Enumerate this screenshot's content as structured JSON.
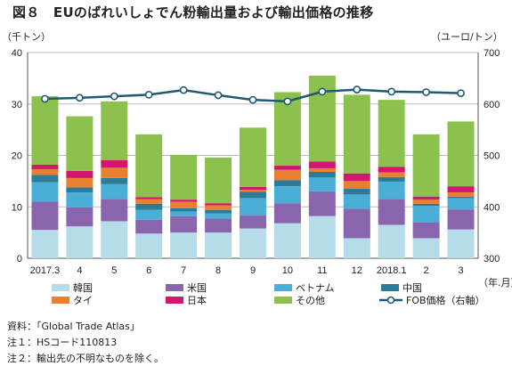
{
  "title": "図８　EUのばれいしょでん粉輸出量および輸出価格の推移",
  "chart_data": {
    "type": "bar",
    "stacked": true,
    "categories": [
      "2017.3",
      "4",
      "5",
      "6",
      "7",
      "8",
      "9",
      "10",
      "11",
      "12",
      "2018.1",
      "2",
      "3"
    ],
    "x_unit": "（年.月）",
    "y_left": {
      "label": "（千トン）",
      "min": 0,
      "max": 40,
      "ticks": [
        0,
        10,
        20,
        30,
        40
      ]
    },
    "y_right": {
      "label": "（ユーロ/トン）",
      "min": 300,
      "max": 700,
      "ticks": [
        300,
        400,
        500,
        600,
        700
      ]
    },
    "series": [
      {
        "name": "韓国",
        "color": "#b6dce9",
        "values": [
          5.5,
          6.2,
          7.2,
          4.8,
          5,
          5,
          5.8,
          6.8,
          8.2,
          3.9,
          6.5,
          3.9,
          5.6
        ]
      },
      {
        "name": "米国",
        "color": "#8a64ad",
        "values": [
          5.5,
          3.7,
          4.3,
          2.7,
          3.2,
          2.7,
          2.5,
          3.9,
          4.8,
          5.7,
          5,
          3.1,
          3.9
        ]
      },
      {
        "name": "ベトナム",
        "color": "#4baed6",
        "values": [
          3.8,
          2.9,
          2.9,
          1.9,
          0.9,
          1,
          3.4,
          3.3,
          2.7,
          2.8,
          3.4,
          3.2,
          2.2
        ]
      },
      {
        "name": "中国",
        "color": "#2e7b98",
        "values": [
          1.4,
          1,
          1.2,
          1.2,
          0.6,
          0.7,
          1.2,
          1.2,
          1.1,
          1.1,
          0.9,
          0.4,
          0.3
        ]
      },
      {
        "name": "タイ",
        "color": "#e8802f",
        "values": [
          1.1,
          1.8,
          2,
          0.9,
          1.3,
          0.9,
          0.4,
          2,
          0.7,
          1.5,
          0.9,
          0.8,
          0.8
        ]
      },
      {
        "name": "日本",
        "color": "#d1186e",
        "values": [
          0.9,
          1.4,
          1.5,
          0.4,
          0.4,
          0.4,
          0.6,
          0.8,
          1.3,
          1.5,
          1.1,
          0.6,
          1.2
        ]
      },
      {
        "name": "その他",
        "color": "#8dc14d",
        "values": [
          13.3,
          10.6,
          11.4,
          12.2,
          8.7,
          8.9,
          11.5,
          14.3,
          16.7,
          15.3,
          13,
          12.1,
          12.6
        ]
      }
    ],
    "line": {
      "name": "FOB価格（右軸）",
      "color": "#1f5a73",
      "axis": "right",
      "values": [
        610,
        612,
        615,
        618,
        627,
        617,
        608,
        605,
        624,
        628,
        624,
        623,
        621
      ]
    },
    "grid": true,
    "legend_position": "bottom"
  },
  "notes": [
    "資料：「Global Trade Atlas」",
    "注１：HSコード110813",
    "注２：輸出先の不明なものを除く。"
  ]
}
